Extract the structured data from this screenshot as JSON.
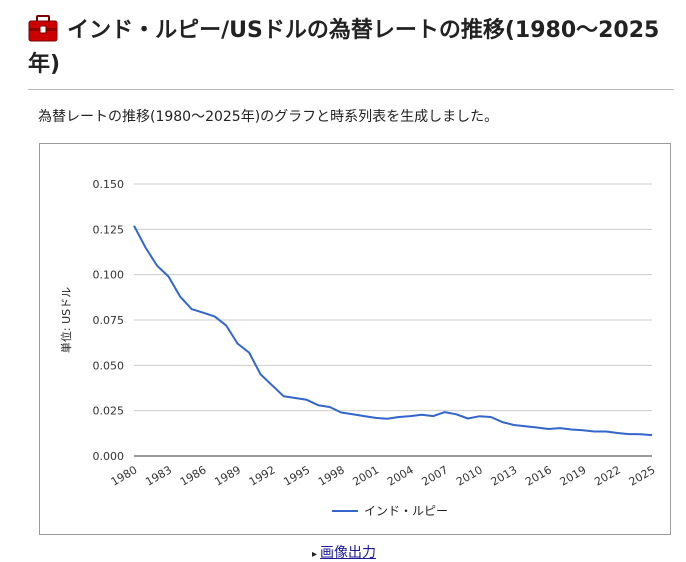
{
  "page": {
    "title": "インド・ルピー/USドルの為替レートの推移(1980〜2025年)",
    "description": "為替レートの推移(1980〜2025年)のグラフと時系列表を生成しました。",
    "image_output_label": "画像出力",
    "title_icon": "toolbox-icon"
  },
  "colors": {
    "series": "#3366cc",
    "grid": "#cccccc",
    "axis": "#333333",
    "icon": "#cc0000"
  },
  "chart_data": {
    "type": "line",
    "ylabel": "単位: USドル",
    "xlabel": "",
    "ylim": [
      0,
      0.15
    ],
    "yticks": [
      0,
      0.025,
      0.05,
      0.075,
      0.1,
      0.125,
      0.15
    ],
    "ytick_labels": [
      "0.000",
      "0.025",
      "0.050",
      "0.075",
      "0.100",
      "0.125",
      "0.150"
    ],
    "xtick_labels": [
      "1980",
      "1983",
      "1986",
      "1989",
      "1992",
      "1995",
      "1998",
      "2001",
      "2004",
      "2007",
      "2010",
      "2013",
      "2016",
      "2019",
      "2022",
      "2025"
    ],
    "legend_position": "bottom",
    "series": [
      {
        "name": "インド・ルピー",
        "x": [
          1980,
          1981,
          1982,
          1983,
          1984,
          1985,
          1986,
          1987,
          1988,
          1989,
          1990,
          1991,
          1992,
          1993,
          1994,
          1995,
          1996,
          1997,
          1998,
          1999,
          2000,
          2001,
          2002,
          2003,
          2004,
          2005,
          2006,
          2007,
          2008,
          2009,
          2010,
          2011,
          2012,
          2013,
          2014,
          2015,
          2016,
          2017,
          2018,
          2019,
          2020,
          2021,
          2022,
          2023,
          2024,
          2025
        ],
        "values": [
          0.127,
          0.115,
          0.105,
          0.099,
          0.088,
          0.081,
          0.079,
          0.077,
          0.072,
          0.062,
          0.057,
          0.045,
          0.039,
          0.033,
          0.032,
          0.031,
          0.028,
          0.027,
          0.024,
          0.023,
          0.022,
          0.021,
          0.0205,
          0.0215,
          0.022,
          0.0227,
          0.022,
          0.0242,
          0.023,
          0.0207,
          0.0219,
          0.0215,
          0.0187,
          0.0171,
          0.0164,
          0.0157,
          0.0149,
          0.0154,
          0.0146,
          0.0142,
          0.0135,
          0.0135,
          0.0127,
          0.0121,
          0.012,
          0.0115
        ]
      }
    ]
  }
}
